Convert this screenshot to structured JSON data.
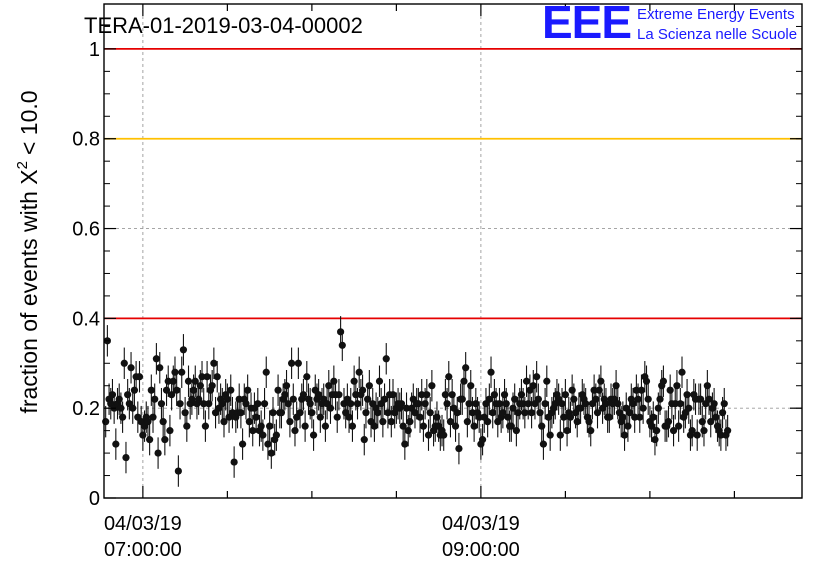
{
  "title": "TERA-01-2019-03-04-00002",
  "logo": {
    "mark": "EEE",
    "line1": "Extreme Energy Events",
    "line2": "La Scienza nelle Scuole"
  },
  "chart_data": {
    "type": "scatter",
    "title": "TERA-01-2019-03-04-00002",
    "ylabel": "fraction of events with",
    "ylabel_symbol": "X",
    "ylabel_exponent": "2",
    "ylabel_tail": "< 10.0",
    "xlabel": "",
    "ylim": [
      0,
      1.1
    ],
    "x_range_hours": [
      6.77,
      10.9
    ],
    "yticks": [
      "0",
      "0.2",
      "0.4",
      "0.6",
      "0.8",
      "1"
    ],
    "xticks": [
      {
        "hours": 7.0,
        "date": "04/03/19",
        "time": "07:00:00"
      },
      {
        "hours": 9.0,
        "date": "04/03/19",
        "time": "09:00:00"
      }
    ],
    "grid": true,
    "reference_lines": [
      {
        "y": 1.0,
        "color": "#e60000"
      },
      {
        "y": 0.8,
        "color": "#ffc000"
      },
      {
        "y": 0.4,
        "color": "#e60000"
      }
    ],
    "marker_color": "#111111",
    "series": [
      {
        "x_start_hours": 6.78,
        "x_step_hours": 0.01,
        "y_error": 0.035,
        "values": [
          0.17,
          0.35,
          0.22,
          0.21,
          0.23,
          0.2,
          0.12,
          0.21,
          0.22,
          0.2,
          0.18,
          0.3,
          0.09,
          0.23,
          0.21,
          0.29,
          0.2,
          0.24,
          0.27,
          0.18,
          0.27,
          0.17,
          0.14,
          0.16,
          0.18,
          0.17,
          0.13,
          0.24,
          0.18,
          0.22,
          0.31,
          0.1,
          0.29,
          0.21,
          0.17,
          0.13,
          0.24,
          0.26,
          0.15,
          0.23,
          0.26,
          0.28,
          0.24,
          0.06,
          0.21,
          0.28,
          0.33,
          0.19,
          0.16,
          0.26,
          0.21,
          0.22,
          0.24,
          0.26,
          0.21,
          0.22,
          0.25,
          0.27,
          0.21,
          0.16,
          0.27,
          0.21,
          0.24,
          0.25,
          0.3,
          0.19,
          0.27,
          0.2,
          0.22,
          0.21,
          0.17,
          0.23,
          0.22,
          0.18,
          0.24,
          0.19,
          0.08,
          0.18,
          0.19,
          0.22,
          0.19,
          0.12,
          0.22,
          0.21,
          0.24,
          0.17,
          0.2,
          0.15,
          0.2,
          0.18,
          0.21,
          0.15,
          0.16,
          0.14,
          0.21,
          0.28,
          0.12,
          0.16,
          0.1,
          0.19,
          0.13,
          0.14,
          0.24,
          0.19,
          0.19,
          0.22,
          0.23,
          0.25,
          0.21,
          0.17,
          0.3,
          0.22,
          0.15,
          0.18,
          0.3,
          0.19,
          0.22,
          0.23,
          0.16,
          0.27,
          0.22,
          0.21,
          0.19,
          0.14,
          0.24,
          0.22,
          0.23,
          0.18,
          0.21,
          0.22,
          0.16,
          0.21,
          0.25,
          0.2,
          0.23,
          0.26,
          0.23,
          0.18,
          0.23,
          0.37,
          0.34,
          0.21,
          0.19,
          0.22,
          0.18,
          0.21,
          0.16,
          0.26,
          0.23,
          0.21,
          0.28,
          0.23,
          0.24,
          0.13,
          0.19,
          0.22,
          0.25,
          0.17,
          0.21,
          0.16,
          0.2,
          0.19,
          0.26,
          0.21,
          0.17,
          0.22,
          0.31,
          0.19,
          0.23,
          0.17,
          0.23,
          0.19,
          0.2,
          0.21,
          0.2,
          0.21,
          0.16,
          0.12,
          0.2,
          0.15,
          0.17,
          0.2,
          0.22,
          0.19,
          0.21,
          0.21,
          0.18,
          0.23,
          0.16,
          0.21,
          0.23,
          0.14,
          0.19,
          0.25,
          0.15,
          0.16,
          0.18,
          0.16,
          0.14,
          0.15,
          0.14,
          0.23,
          0.21,
          0.27,
          0.17,
          0.23,
          0.2,
          0.16,
          0.19,
          0.11,
          0.22,
          0.22,
          0.26,
          0.29,
          0.17,
          0.21,
          0.25,
          0.19,
          0.16,
          0.21,
          0.19,
          0.18,
          0.12,
          0.13,
          0.18,
          0.21,
          0.17,
          0.22,
          0.28,
          0.19,
          0.23,
          0.21,
          0.17,
          0.21,
          0.18,
          0.19,
          0.23,
          0.21,
          0.18,
          0.16,
          0.16,
          0.2,
          0.22,
          0.15,
          0.19,
          0.21,
          0.23,
          0.21,
          0.19,
          0.26,
          0.21,
          0.24,
          0.19,
          0.25,
          0.21,
          0.27,
          0.22,
          0.19,
          0.16,
          0.12,
          0.21,
          0.26,
          0.18,
          0.14,
          0.19,
          0.2,
          0.21,
          0.23,
          0.22,
          0.14,
          0.21,
          0.18,
          0.23,
          0.15,
          0.19,
          0.18,
          0.24,
          0.22,
          0.19,
          0.17,
          0.2,
          0.2,
          0.23,
          0.22,
          0.21,
          0.18,
          0.17,
          0.15,
          0.21,
          0.24,
          0.22,
          0.19,
          0.24,
          0.26,
          0.2,
          0.22,
          0.21,
          0.18,
          0.18,
          0.22,
          0.21,
          0.22,
          0.25,
          0.21,
          0.19,
          0.17,
          0.18,
          0.14,
          0.2,
          0.16,
          0.19,
          0.22,
          0.21,
          0.18,
          0.24,
          0.22,
          0.18,
          0.24,
          0.2,
          0.27,
          0.26,
          0.22,
          0.17,
          0.16,
          0.18,
          0.13,
          0.15,
          0.2,
          0.22,
          0.25,
          0.26,
          0.16,
          0.16,
          0.17,
          0.24,
          0.21,
          0.15,
          0.21,
          0.25,
          0.16,
          0.21,
          0.28,
          0.18,
          0.19,
          0.23,
          0.2,
          0.14,
          0.15,
          0.23,
          0.22,
          0.14,
          0.22,
          0.22,
          0.17,
          0.15,
          0.21,
          0.25,
          0.22,
          0.17,
          0.2,
          0.21,
          0.18,
          0.16,
          0.15,
          0.14,
          0.19,
          0.21,
          0.14,
          0.15
        ]
      }
    ]
  }
}
